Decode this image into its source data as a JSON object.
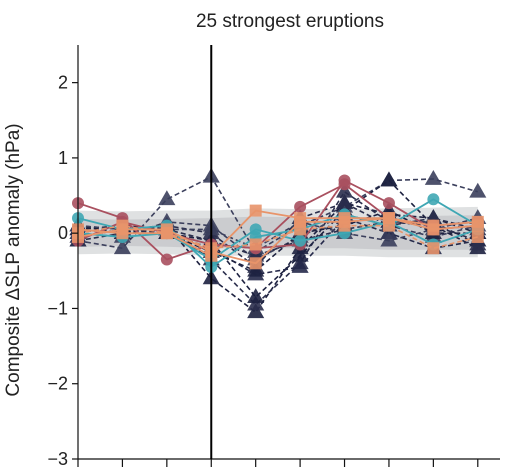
{
  "chart_data": {
    "type": "line",
    "title": "25 strongest eruptions",
    "ylabel": "Composite ΔSLP anomaly (hPa)",
    "xlabel": "",
    "ylim": [
      -3,
      2.5
    ],
    "yticks": [
      -3,
      -2,
      -1,
      0,
      1,
      2
    ],
    "ytick_labels": [
      "−3",
      "−2",
      "−1",
      "0",
      "1",
      "2"
    ],
    "xlim": [
      -3,
      6.5
    ],
    "xticks": [
      -3,
      -2,
      -1,
      0,
      1,
      2,
      3,
      4,
      5,
      6
    ],
    "event_line_x": 0,
    "grid": false,
    "legend": "none",
    "envelope": {
      "color": "#b9bcbf",
      "x": [
        -3,
        -2,
        -1,
        0,
        1,
        2,
        3,
        4,
        5,
        6
      ],
      "outer_lower": [
        -0.28,
        -0.27,
        -0.28,
        -0.3,
        -0.3,
        -0.3,
        -0.3,
        -0.32,
        -0.32,
        -0.32
      ],
      "outer_upper": [
        0.3,
        0.29,
        0.3,
        0.3,
        0.33,
        0.32,
        0.32,
        0.33,
        0.34,
        0.35
      ],
      "inner_lower": [
        -0.18,
        -0.17,
        -0.18,
        -0.2,
        -0.2,
        -0.2,
        -0.2,
        -0.22,
        -0.22,
        -0.22
      ],
      "inner_upper": [
        0.19,
        0.18,
        0.19,
        0.2,
        0.22,
        0.21,
        0.21,
        0.22,
        0.23,
        0.24
      ]
    },
    "series": [
      {
        "style": "dashed",
        "color": "#3b3f5c",
        "marker": "triangle",
        "x": [
          -3,
          -2,
          -1,
          0,
          1,
          2,
          3,
          4,
          5,
          6
        ],
        "values": [
          -0.1,
          -0.2,
          0.45,
          0.75,
          -0.25,
          0.1,
          0.35,
          0.7,
          0.72,
          0.55
        ]
      },
      {
        "style": "dashed",
        "color": "#1d2140",
        "marker": "triangle",
        "x": [
          -3,
          -2,
          -1,
          0,
          1,
          2,
          3,
          4,
          5,
          6
        ],
        "values": [
          0.05,
          0.0,
          0.1,
          -0.6,
          -1.05,
          -0.2,
          0.4,
          0.25,
          0.2,
          0.0
        ]
      },
      {
        "style": "dashed",
        "color": "#2a2e4c",
        "marker": "triangle",
        "x": [
          -3,
          -2,
          -1,
          0,
          1,
          2,
          3,
          4,
          5,
          6
        ],
        "values": [
          0.0,
          0.1,
          0.05,
          -0.35,
          -0.95,
          -0.4,
          0.55,
          0.15,
          0.1,
          -0.1
        ]
      },
      {
        "style": "dashed",
        "color": "#1d2140",
        "marker": "triangle",
        "x": [
          -3,
          -2,
          -1,
          0,
          1,
          2,
          3,
          4,
          5,
          6
        ],
        "values": [
          0.1,
          0.0,
          0.0,
          -0.1,
          -0.85,
          -0.3,
          0.3,
          0.7,
          0.1,
          -0.2
        ]
      },
      {
        "style": "dashed",
        "color": "#25294a",
        "marker": "triangle",
        "x": [
          -3,
          -2,
          -1,
          0,
          1,
          2,
          3,
          4,
          5,
          6
        ],
        "values": [
          -0.05,
          0.05,
          0.0,
          -0.2,
          -0.55,
          -0.45,
          0.2,
          0.0,
          -0.2,
          -0.1
        ]
      },
      {
        "style": "dashed",
        "color": "#2a2e4c",
        "marker": "triangle",
        "x": [
          -3,
          -2,
          -1,
          0,
          1,
          2,
          3,
          4,
          5,
          6
        ],
        "values": [
          0.1,
          0.05,
          0.1,
          0.0,
          -0.45,
          0.2,
          0.4,
          0.1,
          0.2,
          0.05
        ]
      },
      {
        "style": "dashed",
        "color": "#3b3f5c",
        "marker": "triangle",
        "x": [
          -3,
          -2,
          -1,
          0,
          1,
          2,
          3,
          4,
          5,
          6
        ],
        "values": [
          0.0,
          -0.05,
          0.15,
          0.1,
          -0.35,
          -0.05,
          0.25,
          0.1,
          -0.05,
          0.1
        ]
      },
      {
        "style": "dashed",
        "color": "#1d2140",
        "marker": "triangle",
        "x": [
          -3,
          -2,
          -1,
          0,
          1,
          2,
          3,
          4,
          5,
          6
        ],
        "values": [
          0.05,
          0.1,
          0.0,
          -0.25,
          -0.5,
          0.0,
          0.1,
          0.3,
          0.0,
          0.0
        ]
      },
      {
        "style": "dashed",
        "color": "#2a2e4c",
        "marker": "triangle",
        "x": [
          -3,
          -2,
          -1,
          0,
          1,
          2,
          3,
          4,
          5,
          6
        ],
        "values": [
          -0.1,
          0.0,
          0.05,
          -0.1,
          -0.3,
          -0.1,
          0.05,
          0.15,
          0.15,
          -0.15
        ]
      },
      {
        "style": "dashed",
        "color": "#3b3f5c",
        "marker": "triangle",
        "x": [
          -3,
          -2,
          -1,
          0,
          1,
          2,
          3,
          4,
          5,
          6
        ],
        "values": [
          0.1,
          0.05,
          0.05,
          0.05,
          -0.2,
          0.15,
          0.0,
          -0.1,
          0.05,
          0.2
        ]
      },
      {
        "style": "solid",
        "color": "#a9505f",
        "marker": "circle",
        "x": [
          -3,
          -2,
          -1,
          0,
          1,
          2,
          3,
          4,
          5,
          6
        ],
        "values": [
          0.4,
          0.2,
          -0.35,
          -0.15,
          -0.2,
          0.35,
          0.65,
          0.2,
          0.1,
          0.15
        ]
      },
      {
        "style": "solid",
        "color": "#a9505f",
        "marker": "circle",
        "x": [
          -3,
          -2,
          -1,
          0,
          1,
          2,
          3,
          4,
          5,
          6
        ],
        "values": [
          -0.1,
          0.15,
          0.0,
          -0.15,
          -0.2,
          -0.15,
          0.7,
          0.4,
          0.05,
          0.1
        ]
      },
      {
        "style": "solid",
        "color": "#3fa7b4",
        "marker": "circle",
        "x": [
          -3,
          -2,
          -1,
          0,
          1,
          2,
          3,
          4,
          5,
          6
        ],
        "values": [
          0.2,
          0.05,
          0.1,
          -0.45,
          -0.05,
          0.05,
          0.25,
          0.1,
          0.45,
          0.1
        ]
      },
      {
        "style": "solid",
        "color": "#3fa7b4",
        "marker": "circle",
        "x": [
          -3,
          -2,
          -1,
          0,
          1,
          2,
          3,
          4,
          5,
          6
        ],
        "values": [
          0.0,
          -0.05,
          0.0,
          -0.35,
          0.05,
          -0.1,
          0.0,
          0.15,
          -0.15,
          0.05
        ]
      },
      {
        "style": "solid",
        "color": "#e8946a",
        "marker": "square",
        "x": [
          -3,
          -2,
          -1,
          0,
          1,
          2,
          3,
          4,
          5,
          6
        ],
        "values": [
          0.05,
          0.0,
          0.0,
          -0.3,
          0.3,
          0.2,
          0.2,
          0.2,
          0.1,
          0.15
        ]
      },
      {
        "style": "solid",
        "color": "#e8946a",
        "marker": "square",
        "x": [
          -3,
          -2,
          -1,
          0,
          1,
          2,
          3,
          4,
          5,
          6
        ],
        "values": [
          -0.05,
          0.05,
          0.05,
          -0.25,
          -0.4,
          0.15,
          0.15,
          0.2,
          0.05,
          0.1
        ]
      },
      {
        "style": "dashed",
        "color": "#e8946a",
        "marker": "square",
        "x": [
          -3,
          -2,
          -1,
          0,
          1,
          2,
          3,
          4,
          5,
          6
        ],
        "values": [
          0.0,
          0.1,
          0.0,
          -0.2,
          -0.15,
          0.05,
          0.1,
          0.1,
          -0.2,
          -0.05
        ]
      }
    ]
  }
}
